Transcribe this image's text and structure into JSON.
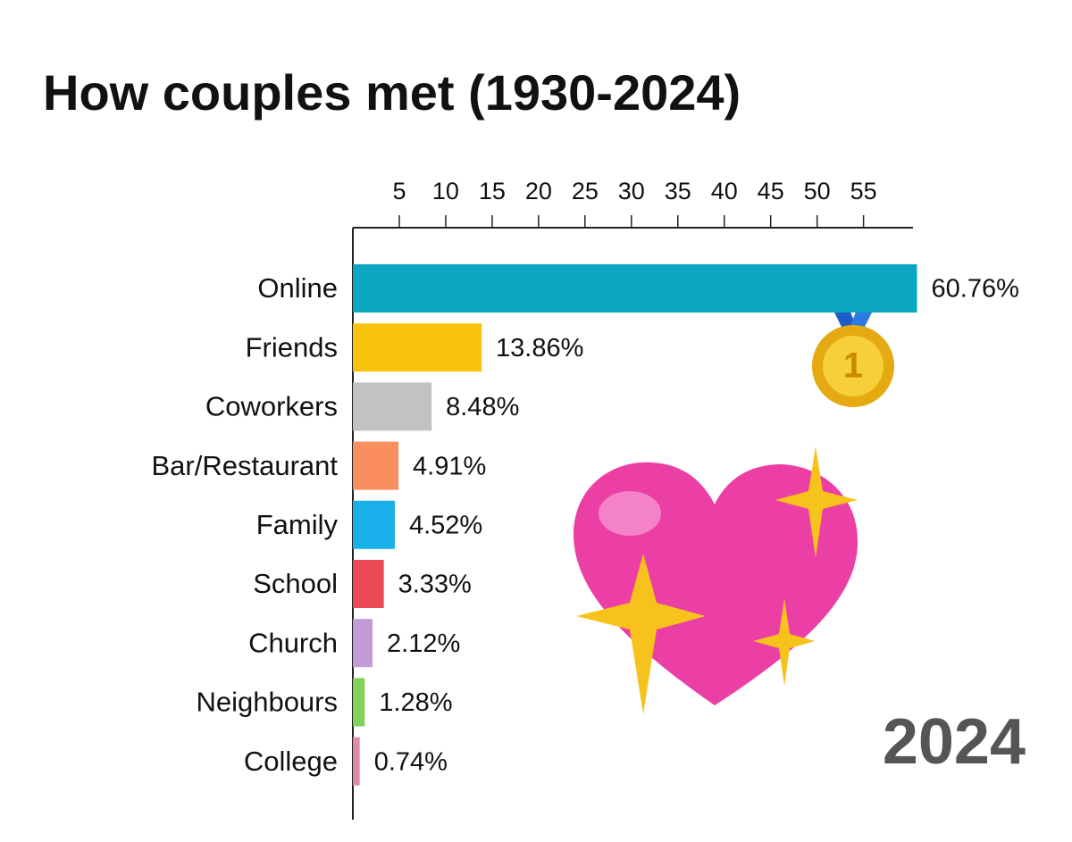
{
  "chart_data": {
    "type": "bar",
    "orientation": "horizontal",
    "title": "How couples met (1930-2024)",
    "categories": [
      "Online",
      "Friends",
      "Coworkers",
      "Bar/Restaurant",
      "Family",
      "School",
      "Church",
      "Neighbours",
      "College"
    ],
    "values": [
      60.76,
      13.86,
      8.48,
      4.91,
      4.52,
      3.33,
      2.12,
      1.28,
      0.74
    ],
    "value_labels": [
      "60.76%",
      "13.86%",
      "8.48%",
      "4.91%",
      "4.52%",
      "3.33%",
      "2.12%",
      "1.28%",
      "0.74%"
    ],
    "colors": [
      "#0ba6c2",
      "#f9c20c",
      "#c2c2c2",
      "#f98f5e",
      "#19afe8",
      "#ec4a58",
      "#c59ad9",
      "#80d25a",
      "#e08aa6"
    ],
    "xlim": [
      0,
      61
    ],
    "xticks": [
      5,
      10,
      15,
      20,
      25,
      30,
      35,
      40,
      45,
      50,
      55
    ],
    "annotation": "2024"
  }
}
